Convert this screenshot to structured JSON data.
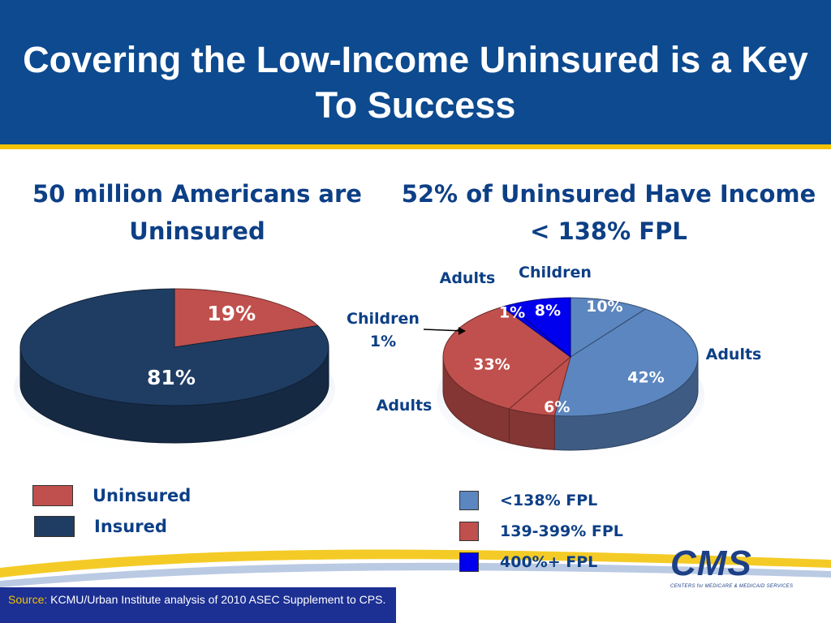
{
  "title": "Covering the Low-Income Uninsured is a Key To Success",
  "colors": {
    "title_bar": "#0d4a8f",
    "accent_gold": "#f2c200",
    "text_blue": "#0d3f86",
    "uninsured": "#c0504d",
    "insured": "#1f3d63",
    "fpl_low": "#5b86c0",
    "fpl_mid": "#c0504d",
    "fpl_high": "#0000ee",
    "source_bg": "#1c2f93"
  },
  "chart_data": [
    {
      "type": "pie",
      "title": "50 million Americans are Uninsured",
      "slices": [
        {
          "label": "Uninsured",
          "value": 19,
          "display": "19%",
          "color": "#c0504d"
        },
        {
          "label": "Insured",
          "value": 81,
          "display": "81%",
          "color": "#1f3d63"
        }
      ],
      "legend": [
        {
          "label": "Uninsured",
          "color": "#c0504d"
        },
        {
          "label": "Insured",
          "color": "#1f3d63"
        }
      ]
    },
    {
      "type": "pie",
      "title": "52% of Uninsured Have Income < 138% FPL",
      "slices": [
        {
          "group": "<138% FPL",
          "category": "Children",
          "value": 10,
          "display": "10%",
          "color": "#5b86c0"
        },
        {
          "group": "<138% FPL",
          "category": "Adults",
          "value": 42,
          "display": "42%",
          "color": "#5b86c0"
        },
        {
          "group": "139-399% FPL",
          "category": "Children",
          "value": 6,
          "display": "6%",
          "color": "#c0504d"
        },
        {
          "group": "139-399% FPL",
          "category": "Adults",
          "value": 33,
          "display": "33%",
          "color": "#c0504d"
        },
        {
          "group": "400%+ FPL",
          "category": "Children",
          "value": 1,
          "display": "1%",
          "color": "#0000ee"
        },
        {
          "group": "400%+ FPL",
          "category": "Adults",
          "value": 8,
          "display": "8%",
          "color": "#0000ee"
        }
      ],
      "annotations": {
        "adults_top": "Adults",
        "children_top": "Children",
        "children_left": "Children",
        "children_left_value": "1%",
        "adults_right": "Adults",
        "adults_left": "Adults"
      },
      "legend": [
        {
          "label": "<138% FPL",
          "color": "#5b86c0"
        },
        {
          "label": "139-399% FPL",
          "color": "#c0504d"
        },
        {
          "label": "400%+ FPL",
          "color": "#0000ee"
        }
      ]
    }
  ],
  "source": {
    "label": "Source:",
    "text": "KCMU/Urban Institute analysis of 2010 ASEC Supplement to CPS."
  },
  "logo": {
    "text": "CMS",
    "subtext": "CENTERS for MEDICARE & MEDICAID SERVICES"
  }
}
